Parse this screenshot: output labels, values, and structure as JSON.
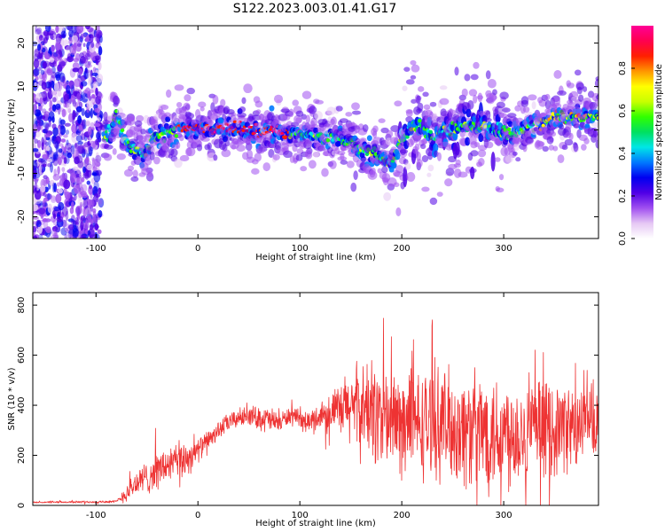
{
  "title": "S122.2023.003.01.41.G17",
  "chart_data": [
    {
      "type": "heatmap",
      "panel": "spectrogram",
      "xlabel": "Height of straight line (km)",
      "ylabel": "Frequency (Hz)",
      "xlim": [
        -162,
        393
      ],
      "ylim": [
        -25,
        24
      ],
      "xticks": [
        -100,
        0,
        100,
        200,
        300
      ],
      "yticks": [
        -20,
        -10,
        0,
        10,
        20
      ],
      "colorbar": {
        "label": "Normalized spectral amplitude",
        "range": [
          0,
          1
        ],
        "ticks": [
          "0.0",
          "0.2",
          "0.4",
          "0.6",
          "0.8"
        ],
        "colors": [
          "#ffffff",
          "#e6c8f4",
          "#a050f0",
          "#5000e6",
          "#0000f0",
          "#0078ff",
          "#00e6e6",
          "#00e060",
          "#30ff00",
          "#c8ff00",
          "#ffff00",
          "#ff9600",
          "#ff2000",
          "#ff0050",
          "#ff0096"
        ]
      },
      "ridge": {
        "x": [
          -92,
          -85,
          -80,
          -75,
          -70,
          -65,
          -60,
          -55,
          -50,
          -45,
          -40,
          -35,
          -30,
          -25,
          -20,
          -10,
          0,
          10,
          20,
          40,
          60,
          80,
          90,
          100,
          110,
          120,
          130,
          140,
          150,
          160,
          170,
          180,
          185,
          190,
          195,
          200,
          210,
          220,
          230,
          240,
          250,
          260,
          270,
          280,
          290,
          300,
          310,
          320,
          330,
          340,
          350,
          360,
          370,
          380,
          393
        ],
        "y": [
          -2,
          1,
          4,
          0,
          -3,
          -4,
          -4,
          -6,
          -5,
          -2,
          -1,
          -1,
          -1,
          0,
          0,
          0.4,
          0.5,
          0.5,
          0.3,
          0.1,
          -0.3,
          -0.4,
          -0.8,
          -1,
          -1.3,
          -1.6,
          -1.5,
          -2,
          -3,
          -4.2,
          -5.5,
          -6.5,
          -7.5,
          -7,
          -5,
          -2,
          0,
          1,
          -2,
          0,
          -1,
          1,
          0,
          1,
          0,
          0,
          -1,
          0,
          1,
          2,
          2.7,
          2.8,
          2.9,
          3,
          3
        ],
        "peak_amplitude_x_range": [
          -20,
          90
        ],
        "noise_region_x_range": [
          -162,
          -95
        ]
      }
    },
    {
      "type": "line",
      "panel": "snr",
      "xlabel": "Height of straight line (km)",
      "ylabel": "SNR (10 * v/v)",
      "xlim": [
        -162,
        393
      ],
      "ylim": [
        0,
        850
      ],
      "xticks": [
        -100,
        0,
        100,
        200,
        300
      ],
      "yticks": [
        0,
        200,
        400,
        600,
        800
      ],
      "line_color": "#ee3333",
      "envelope": {
        "x": [
          -162,
          -80,
          -70,
          -60,
          -50,
          -40,
          -30,
          -20,
          -10,
          0,
          10,
          20,
          30,
          40,
          50,
          60,
          70,
          80,
          90,
          100,
          110,
          120,
          130,
          140,
          150,
          160,
          170,
          180,
          190,
          200,
          210,
          220,
          230,
          240,
          250,
          260,
          270,
          280,
          290,
          300,
          310,
          320,
          330,
          340,
          350,
          360,
          370,
          380,
          393
        ],
        "mean": [
          12,
          15,
          50,
          90,
          110,
          140,
          160,
          175,
          190,
          220,
          260,
          300,
          330,
          350,
          360,
          350,
          340,
          330,
          360,
          340,
          330,
          360,
          380,
          370,
          400,
          380,
          380,
          350,
          340,
          330,
          330,
          320,
          330,
          330,
          320,
          300,
          300,
          300,
          300,
          290,
          300,
          290,
          300,
          310,
          300,
          320,
          300,
          330,
          320
        ],
        "spread": [
          3,
          6,
          40,
          60,
          70,
          80,
          80,
          80,
          80,
          50,
          40,
          40,
          40,
          40,
          40,
          50,
          60,
          40,
          40,
          40,
          50,
          60,
          80,
          120,
          180,
          200,
          220,
          240,
          230,
          220,
          220,
          230,
          230,
          230,
          240,
          250,
          250,
          260,
          260,
          250,
          240,
          220,
          210,
          200,
          200,
          190,
          180,
          170,
          160
        ]
      }
    }
  ]
}
